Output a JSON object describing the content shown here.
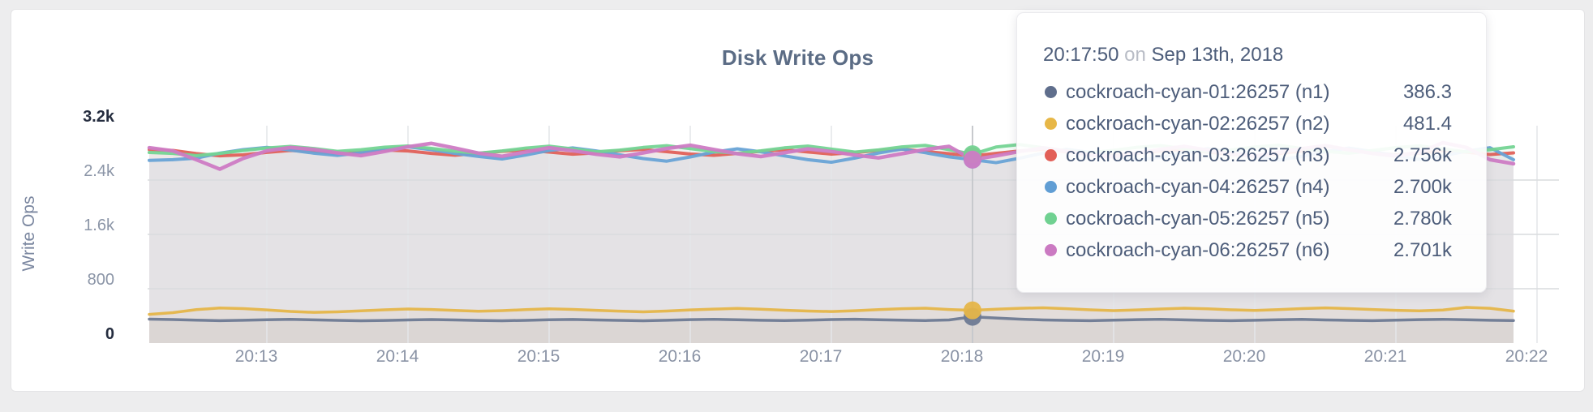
{
  "chart": {
    "title": "Disk Write Ops",
    "ylabel": "Write Ops"
  },
  "tooltip": {
    "time": "20:17:50",
    "connector": "on",
    "date": "Sep 13th, 2018",
    "rows": [
      {
        "name": "cockroach-cyan-01:26257 (n1)",
        "value": "386.3",
        "color": "#5f6e8c"
      },
      {
        "name": "cockroach-cyan-02:26257 (n2)",
        "value": "481.4",
        "color": "#e7b747"
      },
      {
        "name": "cockroach-cyan-03:26257 (n3)",
        "value": "2.756k",
        "color": "#e25f57"
      },
      {
        "name": "cockroach-cyan-04:26257 (n4)",
        "value": "2.700k",
        "color": "#619ed4"
      },
      {
        "name": "cockroach-cyan-05:26257 (n5)",
        "value": "2.780k",
        "color": "#70d191"
      },
      {
        "name": "cockroach-cyan-06:26257 (n6)",
        "value": "2.701k",
        "color": "#cb7ac2"
      }
    ]
  },
  "chart_data": {
    "type": "line",
    "title": "Disk Write Ops",
    "ylabel": "Write Ops",
    "xlabel": "",
    "grid": true,
    "legend_position": "tooltip-overlay",
    "ylim": [
      0,
      3200
    ],
    "x_start_time": "20:12:10",
    "x_interval_seconds": 10,
    "x_ticks": [
      "20:13",
      "20:14",
      "20:15",
      "20:16",
      "20:17",
      "20:18",
      "20:19",
      "20:20",
      "20:21",
      "20:22"
    ],
    "y_ticks": [
      {
        "label": "0",
        "value": 0,
        "emphasis": true
      },
      {
        "label": "800",
        "value": 800,
        "emphasis": false
      },
      {
        "label": "1.6k",
        "value": 1600,
        "emphasis": false
      },
      {
        "label": "2.4k",
        "value": 2400,
        "emphasis": false
      },
      {
        "label": "3.2k",
        "value": 3200,
        "emphasis": true
      }
    ],
    "hover": {
      "index": 35,
      "time": "20:17:50",
      "date": "Sep 13th, 2018"
    },
    "series": [
      {
        "name": "cockroach-cyan-01:26257 (n1)",
        "color": "#6e7a93",
        "width": 3.5,
        "values": [
          352,
          346,
          338,
          330,
          336,
          344,
          349,
          342,
          335,
          329,
          333,
          341,
          347,
          340,
          333,
          328,
          335,
          343,
          348,
          341,
          334,
          329,
          336,
          345,
          350,
          343,
          336,
          331,
          338,
          346,
          351,
          344,
          337,
          332,
          340,
          386.3,
          368,
          352,
          341,
          334,
          330,
          337,
          345,
          350,
          342,
          335,
          330,
          336,
          344,
          349,
          341,
          334,
          330,
          337,
          345,
          350,
          343,
          336,
          331
        ]
      },
      {
        "name": "cockroach-cyan-02:26257 (n2)",
        "color": "#e5b549",
        "width": 3.5,
        "values": [
          422,
          448,
          492,
          516,
          508,
          488,
          466,
          452,
          460,
          474,
          490,
          502,
          494,
          480,
          468,
          478,
          492,
          505,
          496,
          482,
          470,
          460,
          472,
          488,
          500,
          510,
          498,
          484,
          472,
          464,
          476,
          492,
          506,
          514,
          494,
          481.4,
          498,
          512,
          520,
          506,
          490,
          478,
          488,
          502,
          514,
          504,
          490,
          480,
          492,
          508,
          518,
          508,
          494,
          482,
          474,
          486,
          525,
          512,
          470
        ]
      },
      {
        "name": "cockroach-cyan-03:26257 (n3)",
        "color": "#e0615a",
        "width": 4,
        "values": [
          2848,
          2836,
          2790,
          2756,
          2772,
          2808,
          2836,
          2820,
          2786,
          2810,
          2844,
          2828,
          2792,
          2766,
          2794,
          2822,
          2840,
          2812,
          2780,
          2800,
          2832,
          2850,
          2818,
          2784,
          2764,
          2792,
          2824,
          2846,
          2814,
          2782,
          2804,
          2836,
          2856,
          2820,
          2788,
          2756,
          2792,
          2828,
          2852,
          2816,
          2780,
          2762,
          2794,
          2830,
          2848,
          2812,
          2778,
          2758,
          2790,
          2826,
          2902,
          2844,
          2802,
          2772,
          2796,
          2834,
          2810,
          2776,
          2800
        ]
      },
      {
        "name": "cockroach-cyan-04:26257 (n4)",
        "color": "#68a3d6",
        "width": 4,
        "values": [
          2690,
          2700,
          2722,
          2796,
          2848,
          2880,
          2842,
          2796,
          2762,
          2800,
          2856,
          2890,
          2846,
          2792,
          2748,
          2710,
          2768,
          2836,
          2874,
          2828,
          2772,
          2716,
          2678,
          2740,
          2812,
          2860,
          2816,
          2756,
          2700,
          2662,
          2724,
          2798,
          2856,
          2802,
          2742,
          2700,
          2656,
          2722,
          2796,
          2852,
          2806,
          2748,
          2692,
          2734,
          2804,
          2862,
          2814,
          2752,
          2696,
          2748,
          2818,
          2870,
          2820,
          2758,
          2702,
          2756,
          2826,
          2876,
          2700
        ]
      },
      {
        "name": "cockroach-cyan-05:26257 (n5)",
        "color": "#74d494",
        "width": 4,
        "values": [
          2806,
          2792,
          2760,
          2792,
          2836,
          2872,
          2896,
          2864,
          2822,
          2846,
          2884,
          2902,
          2866,
          2824,
          2796,
          2828,
          2870,
          2898,
          2858,
          2816,
          2840,
          2880,
          2906,
          2862,
          2820,
          2794,
          2830,
          2874,
          2900,
          2856,
          2812,
          2844,
          2888,
          2910,
          2848,
          2780,
          2886,
          2922,
          2876,
          2830,
          2802,
          2838,
          2882,
          2908,
          2860,
          2818,
          2844,
          2886,
          2912,
          2864,
          2822,
          2796,
          2834,
          2878,
          2904,
          2858,
          2814,
          2846,
          2890
        ]
      },
      {
        "name": "cockroach-cyan-06:26257 (n6)",
        "color": "#ce7bc4",
        "width": 4.5,
        "values": [
          2876,
          2830,
          2700,
          2560,
          2720,
          2830,
          2880,
          2850,
          2800,
          2760,
          2820,
          2890,
          2940,
          2870,
          2796,
          2750,
          2812,
          2876,
          2832,
          2780,
          2742,
          2800,
          2864,
          2912,
          2850,
          2788,
          2746,
          2802,
          2858,
          2820,
          2768,
          2726,
          2788,
          2850,
          2896,
          2701,
          2756,
          2820,
          2874,
          2826,
          2772,
          2740,
          2796,
          2852,
          2896,
          2840,
          2786,
          2752,
          2806,
          2862,
          2908,
          2846,
          2792,
          2754,
          2808,
          2950,
          2880,
          2700,
          2640
        ]
      }
    ]
  }
}
